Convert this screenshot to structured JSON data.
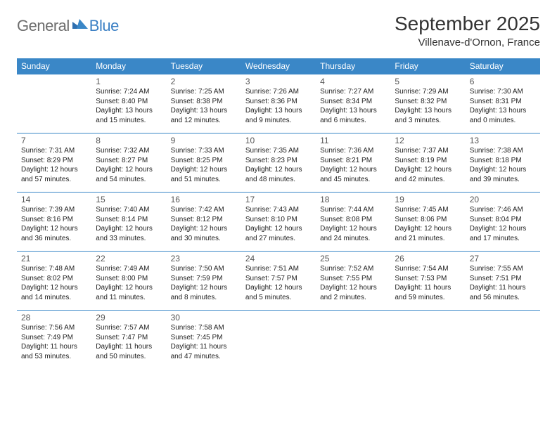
{
  "logo": {
    "general": "General",
    "blue": "Blue"
  },
  "title": "September 2025",
  "location": "Villenave-d'Ornon, France",
  "colors": {
    "header_bg": "#3a87c7",
    "header_text": "#ffffff",
    "border": "#3a87c7",
    "logo_gray": "#6d6d6d",
    "logo_blue": "#3a7fc4",
    "body_text": "#222222"
  },
  "day_headers": [
    "Sunday",
    "Monday",
    "Tuesday",
    "Wednesday",
    "Thursday",
    "Friday",
    "Saturday"
  ],
  "weeks": [
    [
      {
        "day": "",
        "lines": []
      },
      {
        "day": "1",
        "lines": [
          "Sunrise: 7:24 AM",
          "Sunset: 8:40 PM",
          "Daylight: 13 hours and 15 minutes."
        ]
      },
      {
        "day": "2",
        "lines": [
          "Sunrise: 7:25 AM",
          "Sunset: 8:38 PM",
          "Daylight: 13 hours and 12 minutes."
        ]
      },
      {
        "day": "3",
        "lines": [
          "Sunrise: 7:26 AM",
          "Sunset: 8:36 PM",
          "Daylight: 13 hours and 9 minutes."
        ]
      },
      {
        "day": "4",
        "lines": [
          "Sunrise: 7:27 AM",
          "Sunset: 8:34 PM",
          "Daylight: 13 hours and 6 minutes."
        ]
      },
      {
        "day": "5",
        "lines": [
          "Sunrise: 7:29 AM",
          "Sunset: 8:32 PM",
          "Daylight: 13 hours and 3 minutes."
        ]
      },
      {
        "day": "6",
        "lines": [
          "Sunrise: 7:30 AM",
          "Sunset: 8:31 PM",
          "Daylight: 13 hours and 0 minutes."
        ]
      }
    ],
    [
      {
        "day": "7",
        "lines": [
          "Sunrise: 7:31 AM",
          "Sunset: 8:29 PM",
          "Daylight: 12 hours and 57 minutes."
        ]
      },
      {
        "day": "8",
        "lines": [
          "Sunrise: 7:32 AM",
          "Sunset: 8:27 PM",
          "Daylight: 12 hours and 54 minutes."
        ]
      },
      {
        "day": "9",
        "lines": [
          "Sunrise: 7:33 AM",
          "Sunset: 8:25 PM",
          "Daylight: 12 hours and 51 minutes."
        ]
      },
      {
        "day": "10",
        "lines": [
          "Sunrise: 7:35 AM",
          "Sunset: 8:23 PM",
          "Daylight: 12 hours and 48 minutes."
        ]
      },
      {
        "day": "11",
        "lines": [
          "Sunrise: 7:36 AM",
          "Sunset: 8:21 PM",
          "Daylight: 12 hours and 45 minutes."
        ]
      },
      {
        "day": "12",
        "lines": [
          "Sunrise: 7:37 AM",
          "Sunset: 8:19 PM",
          "Daylight: 12 hours and 42 minutes."
        ]
      },
      {
        "day": "13",
        "lines": [
          "Sunrise: 7:38 AM",
          "Sunset: 8:18 PM",
          "Daylight: 12 hours and 39 minutes."
        ]
      }
    ],
    [
      {
        "day": "14",
        "lines": [
          "Sunrise: 7:39 AM",
          "Sunset: 8:16 PM",
          "Daylight: 12 hours and 36 minutes."
        ]
      },
      {
        "day": "15",
        "lines": [
          "Sunrise: 7:40 AM",
          "Sunset: 8:14 PM",
          "Daylight: 12 hours and 33 minutes."
        ]
      },
      {
        "day": "16",
        "lines": [
          "Sunrise: 7:42 AM",
          "Sunset: 8:12 PM",
          "Daylight: 12 hours and 30 minutes."
        ]
      },
      {
        "day": "17",
        "lines": [
          "Sunrise: 7:43 AM",
          "Sunset: 8:10 PM",
          "Daylight: 12 hours and 27 minutes."
        ]
      },
      {
        "day": "18",
        "lines": [
          "Sunrise: 7:44 AM",
          "Sunset: 8:08 PM",
          "Daylight: 12 hours and 24 minutes."
        ]
      },
      {
        "day": "19",
        "lines": [
          "Sunrise: 7:45 AM",
          "Sunset: 8:06 PM",
          "Daylight: 12 hours and 21 minutes."
        ]
      },
      {
        "day": "20",
        "lines": [
          "Sunrise: 7:46 AM",
          "Sunset: 8:04 PM",
          "Daylight: 12 hours and 17 minutes."
        ]
      }
    ],
    [
      {
        "day": "21",
        "lines": [
          "Sunrise: 7:48 AM",
          "Sunset: 8:02 PM",
          "Daylight: 12 hours and 14 minutes."
        ]
      },
      {
        "day": "22",
        "lines": [
          "Sunrise: 7:49 AM",
          "Sunset: 8:00 PM",
          "Daylight: 12 hours and 11 minutes."
        ]
      },
      {
        "day": "23",
        "lines": [
          "Sunrise: 7:50 AM",
          "Sunset: 7:59 PM",
          "Daylight: 12 hours and 8 minutes."
        ]
      },
      {
        "day": "24",
        "lines": [
          "Sunrise: 7:51 AM",
          "Sunset: 7:57 PM",
          "Daylight: 12 hours and 5 minutes."
        ]
      },
      {
        "day": "25",
        "lines": [
          "Sunrise: 7:52 AM",
          "Sunset: 7:55 PM",
          "Daylight: 12 hours and 2 minutes."
        ]
      },
      {
        "day": "26",
        "lines": [
          "Sunrise: 7:54 AM",
          "Sunset: 7:53 PM",
          "Daylight: 11 hours and 59 minutes."
        ]
      },
      {
        "day": "27",
        "lines": [
          "Sunrise: 7:55 AM",
          "Sunset: 7:51 PM",
          "Daylight: 11 hours and 56 minutes."
        ]
      }
    ],
    [
      {
        "day": "28",
        "lines": [
          "Sunrise: 7:56 AM",
          "Sunset: 7:49 PM",
          "Daylight: 11 hours and 53 minutes."
        ]
      },
      {
        "day": "29",
        "lines": [
          "Sunrise: 7:57 AM",
          "Sunset: 7:47 PM",
          "Daylight: 11 hours and 50 minutes."
        ]
      },
      {
        "day": "30",
        "lines": [
          "Sunrise: 7:58 AM",
          "Sunset: 7:45 PM",
          "Daylight: 11 hours and 47 minutes."
        ]
      },
      {
        "day": "",
        "lines": []
      },
      {
        "day": "",
        "lines": []
      },
      {
        "day": "",
        "lines": []
      },
      {
        "day": "",
        "lines": []
      }
    ]
  ]
}
